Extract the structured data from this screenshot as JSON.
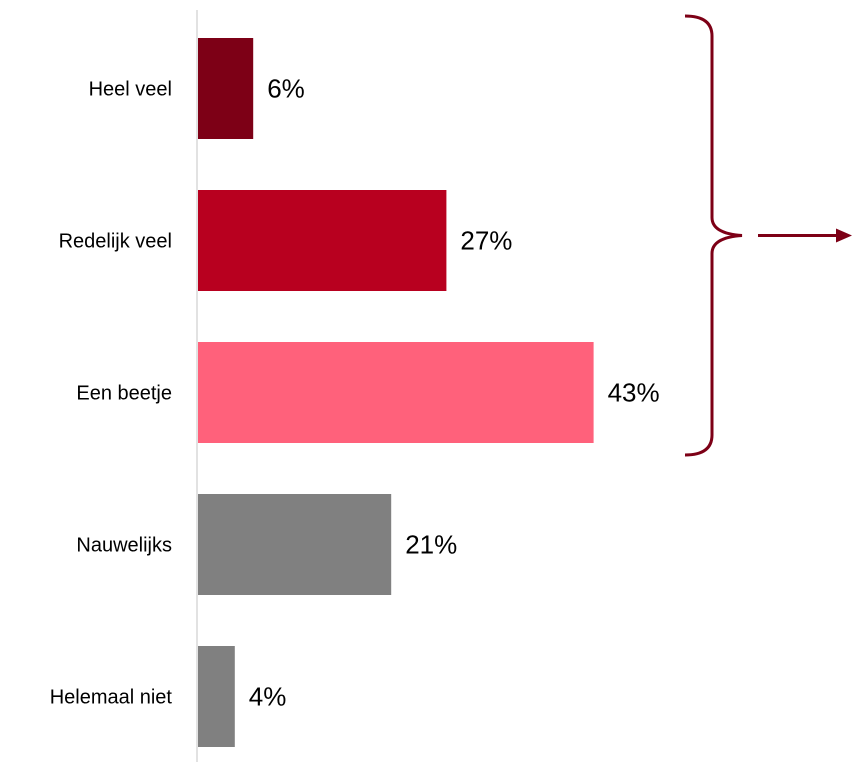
{
  "chart_data": {
    "type": "bar",
    "orientation": "horizontal",
    "categories": [
      "Heel veel",
      "Redelijk veel",
      "Een beetje",
      "Nauwelijks",
      "Helemaal niet"
    ],
    "values": [
      6,
      27,
      43,
      21,
      4
    ],
    "value_labels": [
      "6%",
      "27%",
      "43%",
      "21%",
      "4%"
    ],
    "unit": "%",
    "colors": [
      "#7d0016",
      "#b8001f",
      "#ff617b",
      "#808080",
      "#808080"
    ],
    "bracket_color": "#7d0016",
    "grid": false,
    "legend": "none",
    "xlim": [
      0,
      50
    ]
  }
}
